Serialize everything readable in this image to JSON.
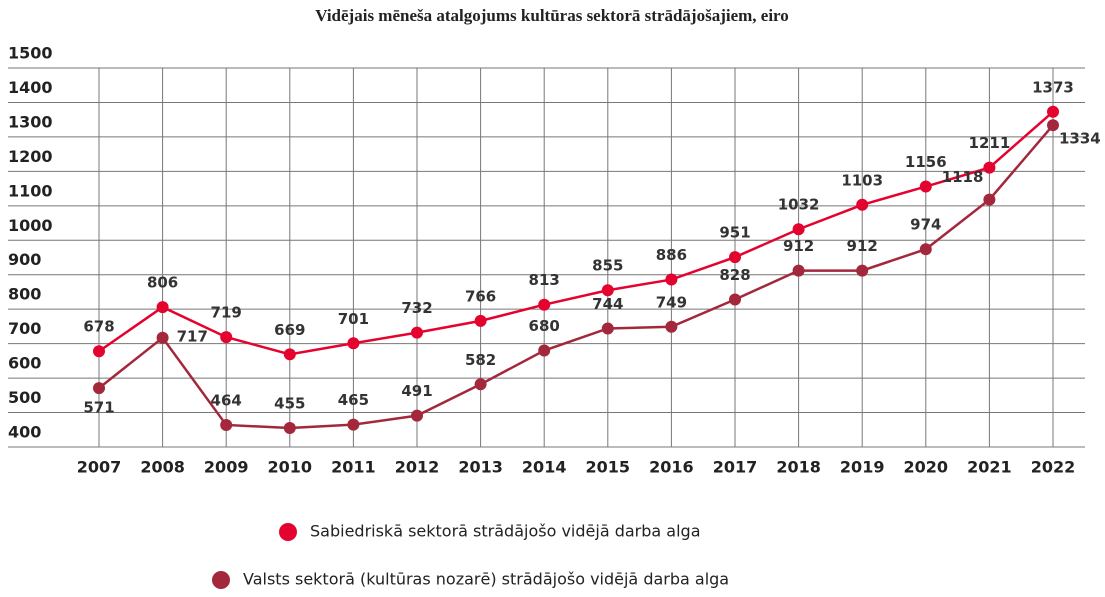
{
  "chart_data": {
    "type": "line",
    "title": "Vidējais mēneša atalgojums kultūras sektorā strādājošajiem, eiro",
    "categories": [
      "2007",
      "2008",
      "2009",
      "2010",
      "2011",
      "2012",
      "2013",
      "2014",
      "2015",
      "2016",
      "2017",
      "2018",
      "2019",
      "2020",
      "2021",
      "2022"
    ],
    "series": [
      {
        "name": "Sabiedriskā sektorā strādājošo vidējā darba alga",
        "color": "#e4032e",
        "values": [
          678,
          806,
          719,
          669,
          701,
          732,
          766,
          813,
          855,
          886,
          951,
          1032,
          1103,
          1156,
          1211,
          1373
        ]
      },
      {
        "name": "Valsts sektorā (kultūras nozarē) strādājošo vidējā darba alga",
        "color": "#a3283c",
        "values": [
          571,
          717,
          464,
          455,
          465,
          491,
          582,
          680,
          744,
          749,
          828,
          912,
          912,
          974,
          1118,
          1334
        ]
      }
    ],
    "ylim": [
      400,
      1500
    ],
    "yticks": [
      400,
      500,
      600,
      700,
      800,
      900,
      1000,
      1100,
      1200,
      1300,
      1400,
      1500
    ],
    "grid": true
  }
}
